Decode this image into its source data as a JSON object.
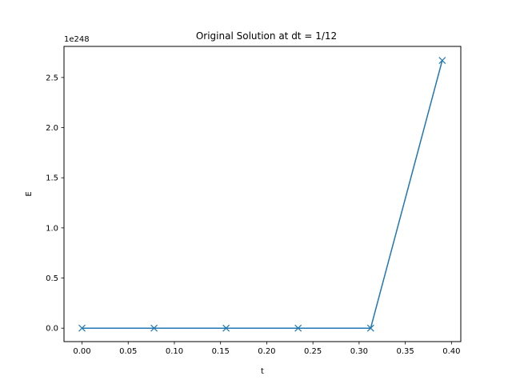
{
  "chart_data": {
    "type": "line",
    "title": "Original Solution at dt = 1/12",
    "xlabel": "t",
    "ylabel": "E",
    "y_offset_text": "1e248",
    "xlim": [
      -0.0195,
      0.4101
    ],
    "ylim": [
      -0.134,
      2.81
    ],
    "grid": false,
    "marker": "x",
    "series_color": "#1f77b4",
    "x_ticks": [
      0.0,
      0.05,
      0.1,
      0.15,
      0.2,
      0.25,
      0.3,
      0.35,
      0.4
    ],
    "x_tick_labels": [
      "0.00",
      "0.05",
      "0.10",
      "0.15",
      "0.20",
      "0.25",
      "0.30",
      "0.35",
      "0.40"
    ],
    "y_ticks": [
      0.0,
      0.5,
      1.0,
      1.5,
      2.0,
      2.5
    ],
    "y_tick_labels": [
      "0.0",
      "0.5",
      "1.0",
      "1.5",
      "2.0",
      "2.5"
    ],
    "series": [
      {
        "x": [
          0.0,
          0.078,
          0.156,
          0.234,
          0.3125,
          0.39
        ],
        "y": [
          0.0,
          0.0,
          0.0,
          0.0,
          0.0,
          2.67
        ]
      }
    ]
  }
}
